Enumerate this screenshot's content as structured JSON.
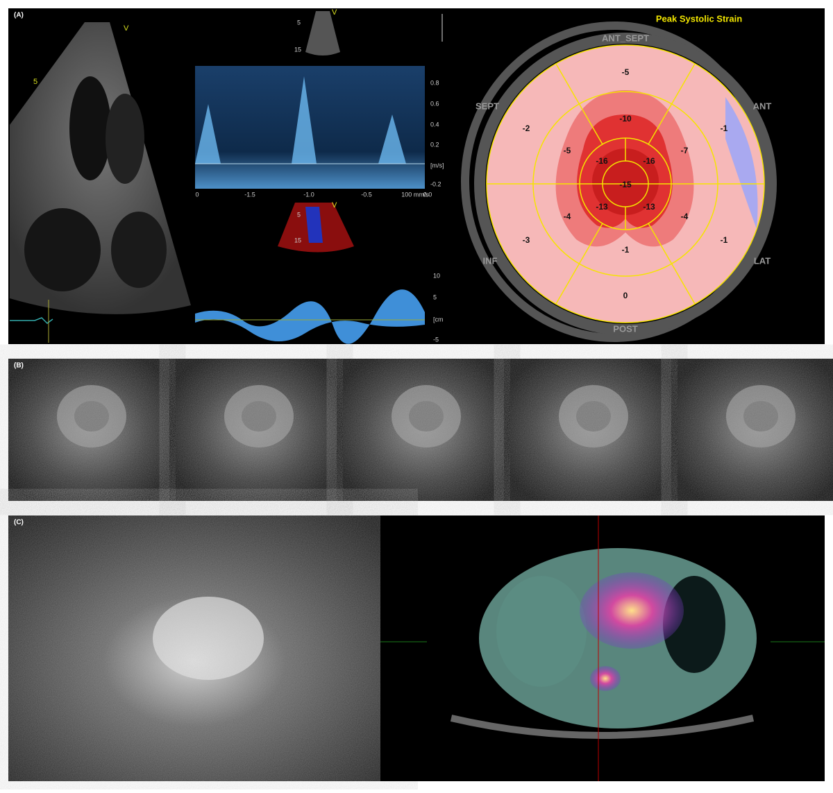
{
  "panel_a": {
    "label": "(A)",
    "echo": {
      "depth": "5",
      "view": "V"
    },
    "top_thumb": {
      "view": "V",
      "depths": [
        "5",
        "15"
      ]
    },
    "doppler": {
      "y_ticks": [
        "0.8",
        "0.6",
        "0.4",
        "0.2",
        "[m/s]",
        "-0.2"
      ],
      "x_ticks": [
        "0",
        "-1.5",
        "-1.0",
        "-0.5",
        "100 mm/s",
        "0.0"
      ]
    },
    "color_thumb": {
      "view": "V",
      "depths": [
        "5",
        "15"
      ]
    },
    "tissue_doppler": {
      "y_ticks": [
        "10",
        "5",
        "[cm",
        "-5"
      ]
    },
    "bullseye": {
      "title": "Peak Systolic Strain",
      "walls": [
        "ANT_SEPT",
        "ANT",
        "LAT",
        "POST",
        "INF",
        "SEPT"
      ],
      "basal": [
        "-5",
        "-1",
        "-1",
        "0",
        "-3",
        "-2"
      ],
      "mid": [
        "-10",
        "-7",
        "-4",
        "-1",
        "-4",
        "-5"
      ],
      "apical": [
        "-16",
        "-13",
        "-13",
        "-16"
      ],
      "apex": "-15"
    }
  },
  "panel_b": {
    "label": "(B)"
  },
  "panel_c": {
    "label": "(C)"
  }
}
